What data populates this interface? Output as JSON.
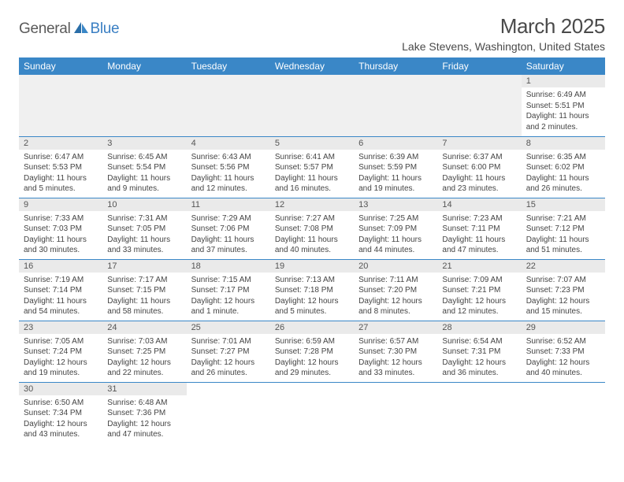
{
  "logo": {
    "general": "General",
    "blue": "Blue"
  },
  "title": "March 2025",
  "location": "Lake Stevens, Washington, United States",
  "colors": {
    "header_bg": "#3a87c7",
    "header_text": "#ffffff",
    "day_num_bg": "#eaeaea",
    "cell_border": "#3a87c7",
    "empty_bg": "#f0f0f0",
    "body_text": "#444444",
    "title_color": "#4a4a4a",
    "logo_gray": "#5a5a5a",
    "logo_blue": "#3a7fc3"
  },
  "day_headers": [
    "Sunday",
    "Monday",
    "Tuesday",
    "Wednesday",
    "Thursday",
    "Friday",
    "Saturday"
  ],
  "weeks": [
    [
      null,
      null,
      null,
      null,
      null,
      null,
      {
        "n": "1",
        "sr": "Sunrise: 6:49 AM",
        "ss": "Sunset: 5:51 PM",
        "dl": "Daylight: 11 hours and 2 minutes."
      }
    ],
    [
      {
        "n": "2",
        "sr": "Sunrise: 6:47 AM",
        "ss": "Sunset: 5:53 PM",
        "dl": "Daylight: 11 hours and 5 minutes."
      },
      {
        "n": "3",
        "sr": "Sunrise: 6:45 AM",
        "ss": "Sunset: 5:54 PM",
        "dl": "Daylight: 11 hours and 9 minutes."
      },
      {
        "n": "4",
        "sr": "Sunrise: 6:43 AM",
        "ss": "Sunset: 5:56 PM",
        "dl": "Daylight: 11 hours and 12 minutes."
      },
      {
        "n": "5",
        "sr": "Sunrise: 6:41 AM",
        "ss": "Sunset: 5:57 PM",
        "dl": "Daylight: 11 hours and 16 minutes."
      },
      {
        "n": "6",
        "sr": "Sunrise: 6:39 AM",
        "ss": "Sunset: 5:59 PM",
        "dl": "Daylight: 11 hours and 19 minutes."
      },
      {
        "n": "7",
        "sr": "Sunrise: 6:37 AM",
        "ss": "Sunset: 6:00 PM",
        "dl": "Daylight: 11 hours and 23 minutes."
      },
      {
        "n": "8",
        "sr": "Sunrise: 6:35 AM",
        "ss": "Sunset: 6:02 PM",
        "dl": "Daylight: 11 hours and 26 minutes."
      }
    ],
    [
      {
        "n": "9",
        "sr": "Sunrise: 7:33 AM",
        "ss": "Sunset: 7:03 PM",
        "dl": "Daylight: 11 hours and 30 minutes."
      },
      {
        "n": "10",
        "sr": "Sunrise: 7:31 AM",
        "ss": "Sunset: 7:05 PM",
        "dl": "Daylight: 11 hours and 33 minutes."
      },
      {
        "n": "11",
        "sr": "Sunrise: 7:29 AM",
        "ss": "Sunset: 7:06 PM",
        "dl": "Daylight: 11 hours and 37 minutes."
      },
      {
        "n": "12",
        "sr": "Sunrise: 7:27 AM",
        "ss": "Sunset: 7:08 PM",
        "dl": "Daylight: 11 hours and 40 minutes."
      },
      {
        "n": "13",
        "sr": "Sunrise: 7:25 AM",
        "ss": "Sunset: 7:09 PM",
        "dl": "Daylight: 11 hours and 44 minutes."
      },
      {
        "n": "14",
        "sr": "Sunrise: 7:23 AM",
        "ss": "Sunset: 7:11 PM",
        "dl": "Daylight: 11 hours and 47 minutes."
      },
      {
        "n": "15",
        "sr": "Sunrise: 7:21 AM",
        "ss": "Sunset: 7:12 PM",
        "dl": "Daylight: 11 hours and 51 minutes."
      }
    ],
    [
      {
        "n": "16",
        "sr": "Sunrise: 7:19 AM",
        "ss": "Sunset: 7:14 PM",
        "dl": "Daylight: 11 hours and 54 minutes."
      },
      {
        "n": "17",
        "sr": "Sunrise: 7:17 AM",
        "ss": "Sunset: 7:15 PM",
        "dl": "Daylight: 11 hours and 58 minutes."
      },
      {
        "n": "18",
        "sr": "Sunrise: 7:15 AM",
        "ss": "Sunset: 7:17 PM",
        "dl": "Daylight: 12 hours and 1 minute."
      },
      {
        "n": "19",
        "sr": "Sunrise: 7:13 AM",
        "ss": "Sunset: 7:18 PM",
        "dl": "Daylight: 12 hours and 5 minutes."
      },
      {
        "n": "20",
        "sr": "Sunrise: 7:11 AM",
        "ss": "Sunset: 7:20 PM",
        "dl": "Daylight: 12 hours and 8 minutes."
      },
      {
        "n": "21",
        "sr": "Sunrise: 7:09 AM",
        "ss": "Sunset: 7:21 PM",
        "dl": "Daylight: 12 hours and 12 minutes."
      },
      {
        "n": "22",
        "sr": "Sunrise: 7:07 AM",
        "ss": "Sunset: 7:23 PM",
        "dl": "Daylight: 12 hours and 15 minutes."
      }
    ],
    [
      {
        "n": "23",
        "sr": "Sunrise: 7:05 AM",
        "ss": "Sunset: 7:24 PM",
        "dl": "Daylight: 12 hours and 19 minutes."
      },
      {
        "n": "24",
        "sr": "Sunrise: 7:03 AM",
        "ss": "Sunset: 7:25 PM",
        "dl": "Daylight: 12 hours and 22 minutes."
      },
      {
        "n": "25",
        "sr": "Sunrise: 7:01 AM",
        "ss": "Sunset: 7:27 PM",
        "dl": "Daylight: 12 hours and 26 minutes."
      },
      {
        "n": "26",
        "sr": "Sunrise: 6:59 AM",
        "ss": "Sunset: 7:28 PM",
        "dl": "Daylight: 12 hours and 29 minutes."
      },
      {
        "n": "27",
        "sr": "Sunrise: 6:57 AM",
        "ss": "Sunset: 7:30 PM",
        "dl": "Daylight: 12 hours and 33 minutes."
      },
      {
        "n": "28",
        "sr": "Sunrise: 6:54 AM",
        "ss": "Sunset: 7:31 PM",
        "dl": "Daylight: 12 hours and 36 minutes."
      },
      {
        "n": "29",
        "sr": "Sunrise: 6:52 AM",
        "ss": "Sunset: 7:33 PM",
        "dl": "Daylight: 12 hours and 40 minutes."
      }
    ],
    [
      {
        "n": "30",
        "sr": "Sunrise: 6:50 AM",
        "ss": "Sunset: 7:34 PM",
        "dl": "Daylight: 12 hours and 43 minutes."
      },
      {
        "n": "31",
        "sr": "Sunrise: 6:48 AM",
        "ss": "Sunset: 7:36 PM",
        "dl": "Daylight: 12 hours and 47 minutes."
      },
      null,
      null,
      null,
      null,
      null
    ]
  ]
}
